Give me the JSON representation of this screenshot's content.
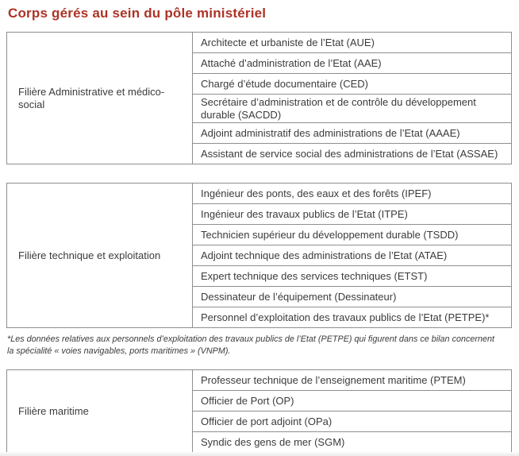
{
  "page": {
    "title": "Corps gérés au sein du pôle ministériel",
    "title_color": "#ad3326",
    "border_color": "#8f8f8f",
    "text_color": "#3b3b3b"
  },
  "tables": [
    {
      "category": "Filière Administrative et médico-social",
      "rows": [
        "Architecte et urbaniste de l’Etat (AUE)",
        "Attaché d’administration de l’Etat (AAE)",
        "Chargé d’étude documentaire (CED)",
        "Secrétaire d’administration et de contrôle du développement durable (SACDD)",
        "Adjoint administratif des administrations de l’Etat (AAAE)",
        "Assistant de service social des administrations de l’Etat (ASSAE)"
      ]
    },
    {
      "category": "Filière technique et exploitation",
      "rows": [
        "Ingénieur des ponts, des eaux et des forêts (IPEF)",
        "Ingénieur des travaux publics de l’Etat (ITPE)",
        "Technicien supérieur du développement durable (TSDD)",
        "Adjoint technique des administrations de l’Etat (ATAE)",
        "Expert technique des services techniques (ETST)",
        "Dessinateur de l’équipement (Dessinateur)",
        "Personnel d’exploitation des travaux publics de l’Etat (PETPE)*"
      ],
      "footnote": "*Les données relatives aux personnels d’exploitation des travaux publics de l’Etat (PETPE) qui figurent dans ce bilan concernent la spécialité « voies navigables, ports maritimes » (VNPM)."
    },
    {
      "category": "Filière maritime",
      "rows": [
        "Professeur technique de l’enseignement maritime (PTEM)",
        "Officier de Port (OP)",
        "Officier de port adjoint (OPa)",
        "Syndic des gens de mer (SGM)"
      ]
    }
  ]
}
